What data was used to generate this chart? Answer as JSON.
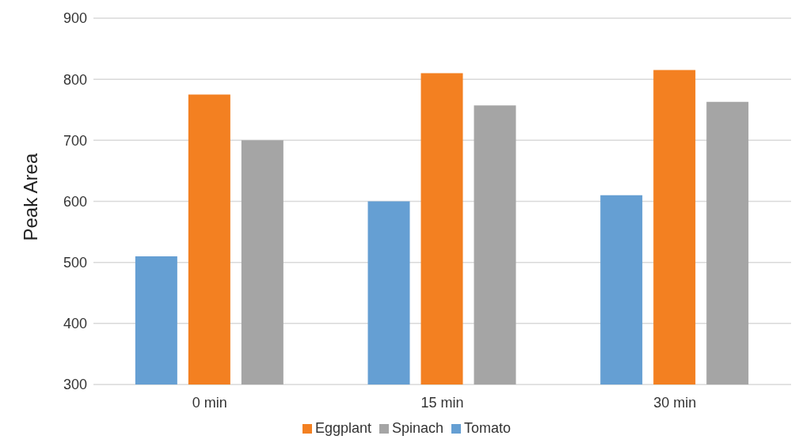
{
  "chart_data": {
    "type": "bar",
    "ylabel": "Peak Area",
    "categories": [
      "0 min",
      "15 min",
      "30 min"
    ],
    "series": [
      {
        "name": "Tomato",
        "color": "#659fd3",
        "values": [
          510,
          600,
          610
        ]
      },
      {
        "name": "Eggplant",
        "color": "#f38021",
        "values": [
          775,
          810,
          815
        ]
      },
      {
        "name": "Spinach",
        "color": "#a5a5a5",
        "values": [
          700,
          757,
          763
        ]
      }
    ],
    "ylim": [
      300,
      900
    ],
    "yticks": [
      300,
      400,
      500,
      600,
      700,
      800,
      900
    ],
    "grid": "y",
    "legend": "bottom"
  }
}
